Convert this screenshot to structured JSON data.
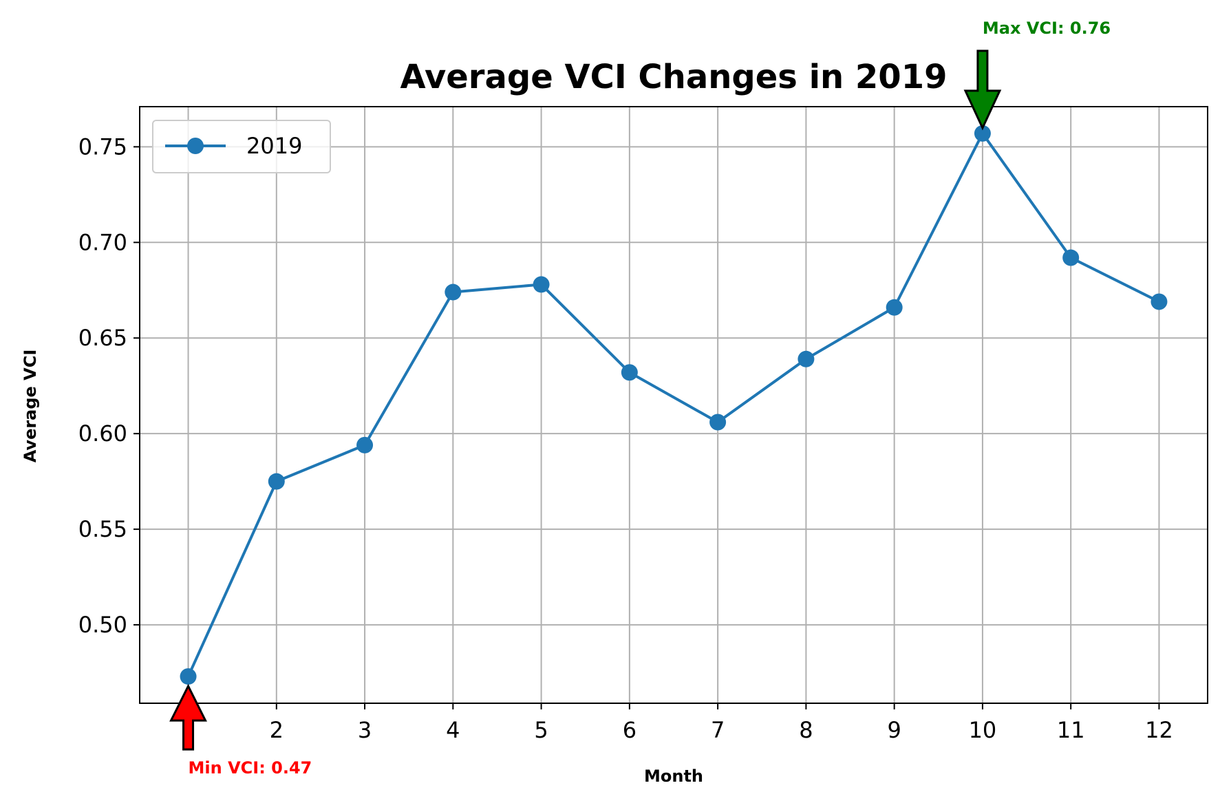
{
  "chart_data": {
    "type": "line",
    "title": "Average VCI Changes in 2019",
    "xlabel": "Month",
    "ylabel": "Average VCI",
    "x": [
      1,
      2,
      3,
      4,
      5,
      6,
      7,
      8,
      9,
      10,
      11,
      12
    ],
    "x_tick_labels": [
      "2",
      "3",
      "4",
      "5",
      "6",
      "7",
      "8",
      "9",
      "10",
      "11",
      "12"
    ],
    "y_tick_labels": [
      "0.50",
      "0.55",
      "0.60",
      "0.65",
      "0.70",
      "0.75"
    ],
    "y_ticks": [
      0.5,
      0.55,
      0.6,
      0.65,
      0.7,
      0.75
    ],
    "xlim": [
      0.45,
      12.55
    ],
    "ylim": [
      0.459,
      0.771
    ],
    "grid": true,
    "legend_position": "top-left",
    "series": [
      {
        "name": "2019",
        "color": "#1f77b4",
        "marker": "circle",
        "values": [
          0.473,
          0.575,
          0.594,
          0.674,
          0.678,
          0.632,
          0.606,
          0.639,
          0.666,
          0.757,
          0.692,
          0.669
        ]
      }
    ],
    "annotations": [
      {
        "text": "Max VCI: 0.76",
        "x": 10,
        "y": 0.757,
        "color": "#008000",
        "arrow": "down"
      },
      {
        "text": "Min VCI: 0.47",
        "x": 1,
        "y": 0.473,
        "color": "#ff0000",
        "arrow": "up"
      }
    ]
  }
}
